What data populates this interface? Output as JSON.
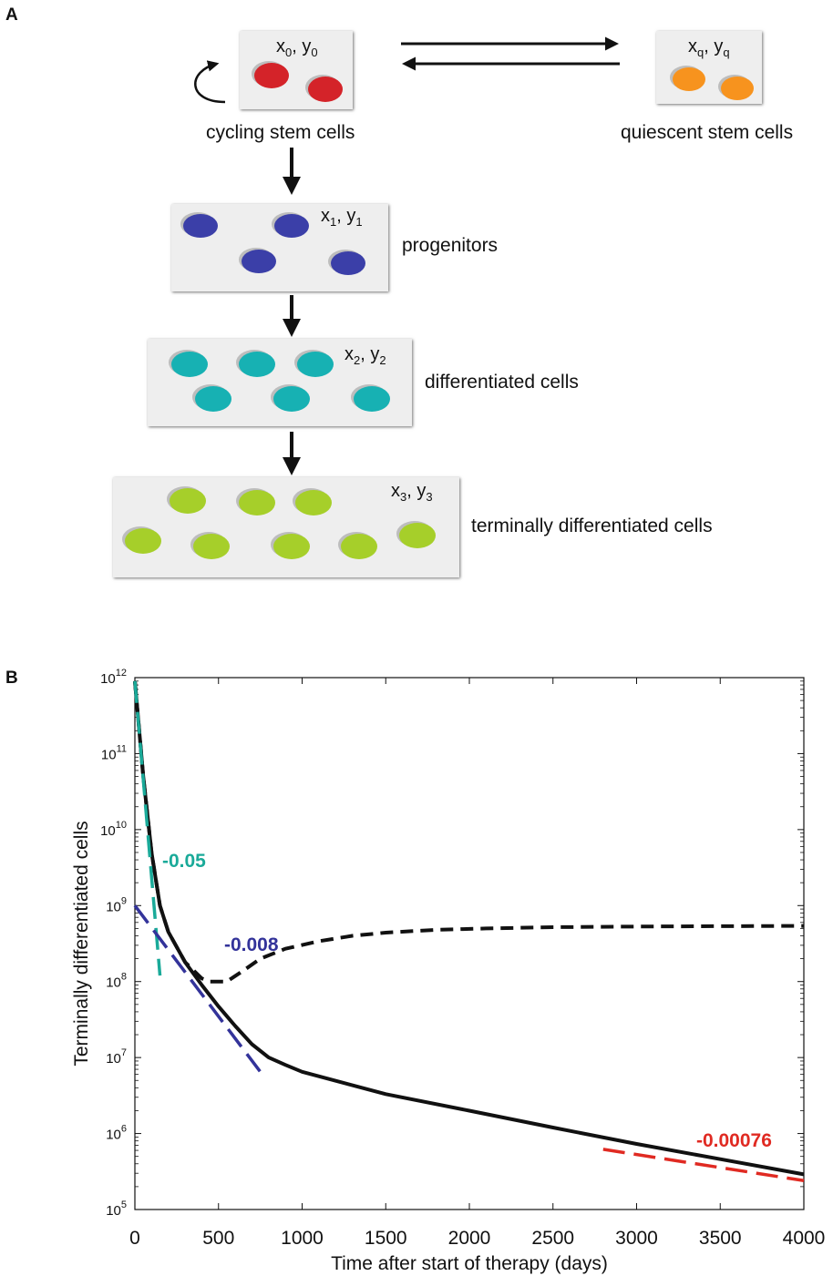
{
  "panel_a": {
    "letter": "A",
    "compartments": [
      {
        "id": "cycling",
        "label": "cycling stem cells",
        "var_x": "x",
        "var_y": "y",
        "sub": "0",
        "cells": 2,
        "color": "#d42329"
      },
      {
        "id": "quiescent",
        "label": "quiescent stem cells",
        "var_x": "x",
        "var_y": "y",
        "sub": "q",
        "cells": 2,
        "color": "#f7931e"
      },
      {
        "id": "progenitors",
        "label": "progenitors",
        "var_x": "x",
        "var_y": "y",
        "sub": "1",
        "cells": 4,
        "color": "#3b3fa8"
      },
      {
        "id": "differentiated",
        "label": "differentiated cells",
        "var_x": "x",
        "var_y": "y",
        "sub": "2",
        "cells": 6,
        "color": "#17b1b3"
      },
      {
        "id": "terminal",
        "label": "terminally differentiated cells",
        "var_x": "x",
        "var_y": "y",
        "sub": "3",
        "cells": 8,
        "color": "#a6cf2a"
      }
    ]
  },
  "panel_b": {
    "letter": "B",
    "chart_data": {
      "type": "line",
      "title": "",
      "xlabel": "Time after start of therapy (days)",
      "ylabel": "Terminally differentiated cells",
      "xlim": [
        0,
        4000
      ],
      "ylim_log10": [
        5,
        12
      ],
      "x_scale": "linear",
      "y_scale": "log",
      "x_ticks": [
        0,
        500,
        1000,
        1500,
        2000,
        2500,
        3000,
        3500,
        4000
      ],
      "y_ticks": [
        5,
        6,
        7,
        8,
        9,
        10,
        11,
        12
      ],
      "grid": false,
      "series": [
        {
          "style": "solid",
          "color": "#111111",
          "x": [
            0,
            50,
            100,
            150,
            200,
            300,
            400,
            500,
            600,
            700,
            800,
            900,
            1000,
            1500,
            2000,
            2500,
            3000,
            3500,
            4000
          ],
          "y": [
            900000000000,
            50000000000,
            5000000000,
            1000000000,
            450000000,
            180000000,
            90000000,
            47000000,
            26000000,
            15000000,
            10000000,
            8000000,
            6500000,
            3300000,
            2000000,
            1200000,
            730000,
            460000,
            290000
          ]
        },
        {
          "style": "dashed",
          "color": "#111111",
          "x": [
            0,
            50,
            100,
            150,
            200,
            300,
            400,
            450,
            550,
            650,
            750,
            900,
            1100,
            1300,
            1500,
            1800,
            2100,
            2500,
            3000,
            3500,
            4000
          ],
          "y": [
            900000000000,
            50000000000,
            5000000000,
            1000000000,
            450000000,
            180000000,
            110000000,
            100000000,
            100000000,
            140000000,
            200000000,
            270000000,
            340000000,
            400000000,
            440000000,
            480000000,
            500000000,
            520000000,
            530000000,
            535000000,
            540000000
          ]
        }
      ],
      "fit_lines": [
        {
          "label": "-0.05",
          "color": "#1aaa99",
          "x": [
            0,
            150
          ],
          "y": [
            900000000000,
            120000000
          ]
        },
        {
          "label": "-0.008",
          "color": "#33339a",
          "x": [
            0,
            750
          ],
          "y": [
            1000000000,
            6500000
          ]
        },
        {
          "label": "-0.00076",
          "color": "#e02a22",
          "x": [
            2800,
            4000
          ],
          "y": [
            620000,
            240000
          ]
        }
      ]
    }
  }
}
